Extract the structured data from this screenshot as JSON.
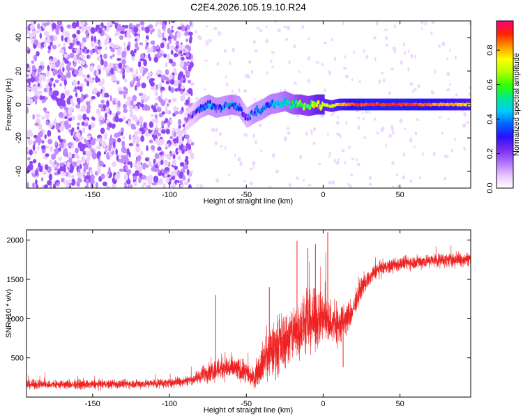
{
  "title": "C2E4.2026.105.19.10.R24",
  "chart_data": [
    {
      "type": "heatmap",
      "name": "spectrogram",
      "xlabel": "Height of straight line (km)",
      "ylabel": "Frequency (Hz)",
      "xlim": [
        -193,
        96
      ],
      "ylim": [
        -50,
        50
      ],
      "xticks": [
        -150,
        -100,
        -50,
        0,
        50
      ],
      "xtick_labels": [
        "-150",
        "-100",
        "-50",
        "0",
        "50"
      ],
      "yticks": [
        -40,
        -20,
        0,
        20,
        40
      ],
      "ytick_labels": [
        "-40",
        "-20",
        "0",
        "20",
        "40"
      ],
      "colorbar": {
        "label": "Normalized spectral amplitude",
        "range": [
          0.0,
          0.97
        ],
        "ticks": [
          0.0,
          0.2,
          0.4,
          0.6,
          0.8
        ],
        "tick_labels": [
          "0.0",
          "0.2",
          "0.4",
          "0.6",
          "0.8"
        ],
        "colors": [
          "#ffffff",
          "#e6c3ff",
          "#b070ff",
          "#7a2bf0",
          "#2a10ff",
          "#0066ff",
          "#00ccff",
          "#00e890",
          "#30ff00",
          "#b0ff00",
          "#ffff00",
          "#ff9900",
          "#ff2200",
          "#ff0080"
        ]
      },
      "noise_region": {
        "x_start": -193,
        "x_end": -85,
        "description_level": 0.15
      },
      "signal_track": [
        {
          "x": -90,
          "freq": -10,
          "amp": 0.12
        },
        {
          "x": -85,
          "freq": -6,
          "amp": 0.2
        },
        {
          "x": -80,
          "freq": -2,
          "amp": 0.3
        },
        {
          "x": -75,
          "freq": 0,
          "amp": 0.35
        },
        {
          "x": -70,
          "freq": -2,
          "amp": 0.35
        },
        {
          "x": -65,
          "freq": -1,
          "amp": 0.35
        },
        {
          "x": -60,
          "freq": 0,
          "amp": 0.4
        },
        {
          "x": -55,
          "freq": -1,
          "amp": 0.35
        },
        {
          "x": -50,
          "freq": -8,
          "amp": 0.25
        },
        {
          "x": -45,
          "freq": -5,
          "amp": 0.35
        },
        {
          "x": -40,
          "freq": -3,
          "amp": 0.35
        },
        {
          "x": -35,
          "freq": 0,
          "amp": 0.4
        },
        {
          "x": -30,
          "freq": 1,
          "amp": 0.4
        },
        {
          "x": -25,
          "freq": 2,
          "amp": 0.45
        },
        {
          "x": -20,
          "freq": 0,
          "amp": 0.5
        },
        {
          "x": -15,
          "freq": 0,
          "amp": 0.6
        },
        {
          "x": -10,
          "freq": -1,
          "amp": 0.6
        },
        {
          "x": -5,
          "freq": 0,
          "amp": 0.7
        },
        {
          "x": 0,
          "freq": 0,
          "amp": 0.75
        },
        {
          "x": 5,
          "freq": -1,
          "amp": 0.7
        },
        {
          "x": 10,
          "freq": 0,
          "amp": 0.8
        },
        {
          "x": 15,
          "freq": 0,
          "amp": 0.85
        },
        {
          "x": 20,
          "freq": 0,
          "amp": 0.9
        },
        {
          "x": 30,
          "freq": 0,
          "amp": 0.92
        },
        {
          "x": 40,
          "freq": 0,
          "amp": 0.92
        },
        {
          "x": 50,
          "freq": 0,
          "amp": 0.92
        },
        {
          "x": 60,
          "freq": 0,
          "amp": 0.9
        },
        {
          "x": 70,
          "freq": 0,
          "amp": 0.88
        },
        {
          "x": 80,
          "freq": 0,
          "amp": 0.85
        },
        {
          "x": 90,
          "freq": 0,
          "amp": 0.82
        },
        {
          "x": 96,
          "freq": 0,
          "amp": 0.8
        }
      ]
    },
    {
      "type": "line",
      "name": "snr",
      "xlabel": "Height of straight line (km)",
      "ylabel": "SNR (10 * v/v)",
      "xlim": [
        -193,
        96
      ],
      "ylim": [
        0,
        2130
      ],
      "xticks": [
        -150,
        -100,
        -50,
        0,
        50
      ],
      "xtick_labels": [
        "-150",
        "-100",
        "-50",
        "0",
        "50"
      ],
      "yticks": [
        500,
        1000,
        1500,
        2000
      ],
      "ytick_labels": [
        "500",
        "1000",
        "1500",
        "2000"
      ],
      "color": "#ee2222",
      "envelope": [
        {
          "x": -193,
          "mean": 160,
          "spread": 90
        },
        {
          "x": -150,
          "mean": 160,
          "spread": 90
        },
        {
          "x": -120,
          "mean": 170,
          "spread": 90
        },
        {
          "x": -100,
          "mean": 180,
          "spread": 90
        },
        {
          "x": -85,
          "mean": 220,
          "spread": 100
        },
        {
          "x": -75,
          "mean": 320,
          "spread": 200
        },
        {
          "x": -65,
          "mean": 380,
          "spread": 250
        },
        {
          "x": -55,
          "mean": 350,
          "spread": 230
        },
        {
          "x": -45,
          "mean": 250,
          "spread": 200
        },
        {
          "x": -38,
          "mean": 500,
          "spread": 450
        },
        {
          "x": -30,
          "mean": 650,
          "spread": 550
        },
        {
          "x": -20,
          "mean": 800,
          "spread": 550
        },
        {
          "x": -10,
          "mean": 950,
          "spread": 600
        },
        {
          "x": 0,
          "mean": 1000,
          "spread": 500
        },
        {
          "x": 10,
          "mean": 900,
          "spread": 450
        },
        {
          "x": 18,
          "mean": 1050,
          "spread": 250
        },
        {
          "x": 25,
          "mean": 1400,
          "spread": 180
        },
        {
          "x": 35,
          "mean": 1620,
          "spread": 150
        },
        {
          "x": 50,
          "mean": 1700,
          "spread": 140
        },
        {
          "x": 70,
          "mean": 1740,
          "spread": 140
        },
        {
          "x": 96,
          "mean": 1760,
          "spread": 140
        }
      ],
      "spikes": [
        {
          "x": -70,
          "y": 1300
        },
        {
          "x": -35,
          "y": 1400
        },
        {
          "x": -17,
          "y": 1990
        },
        {
          "x": -10,
          "y": 1900
        },
        {
          "x": -5,
          "y": 1950
        },
        {
          "x": 3,
          "y": 2100
        },
        {
          "x": 13,
          "y": 380
        }
      ]
    }
  ]
}
